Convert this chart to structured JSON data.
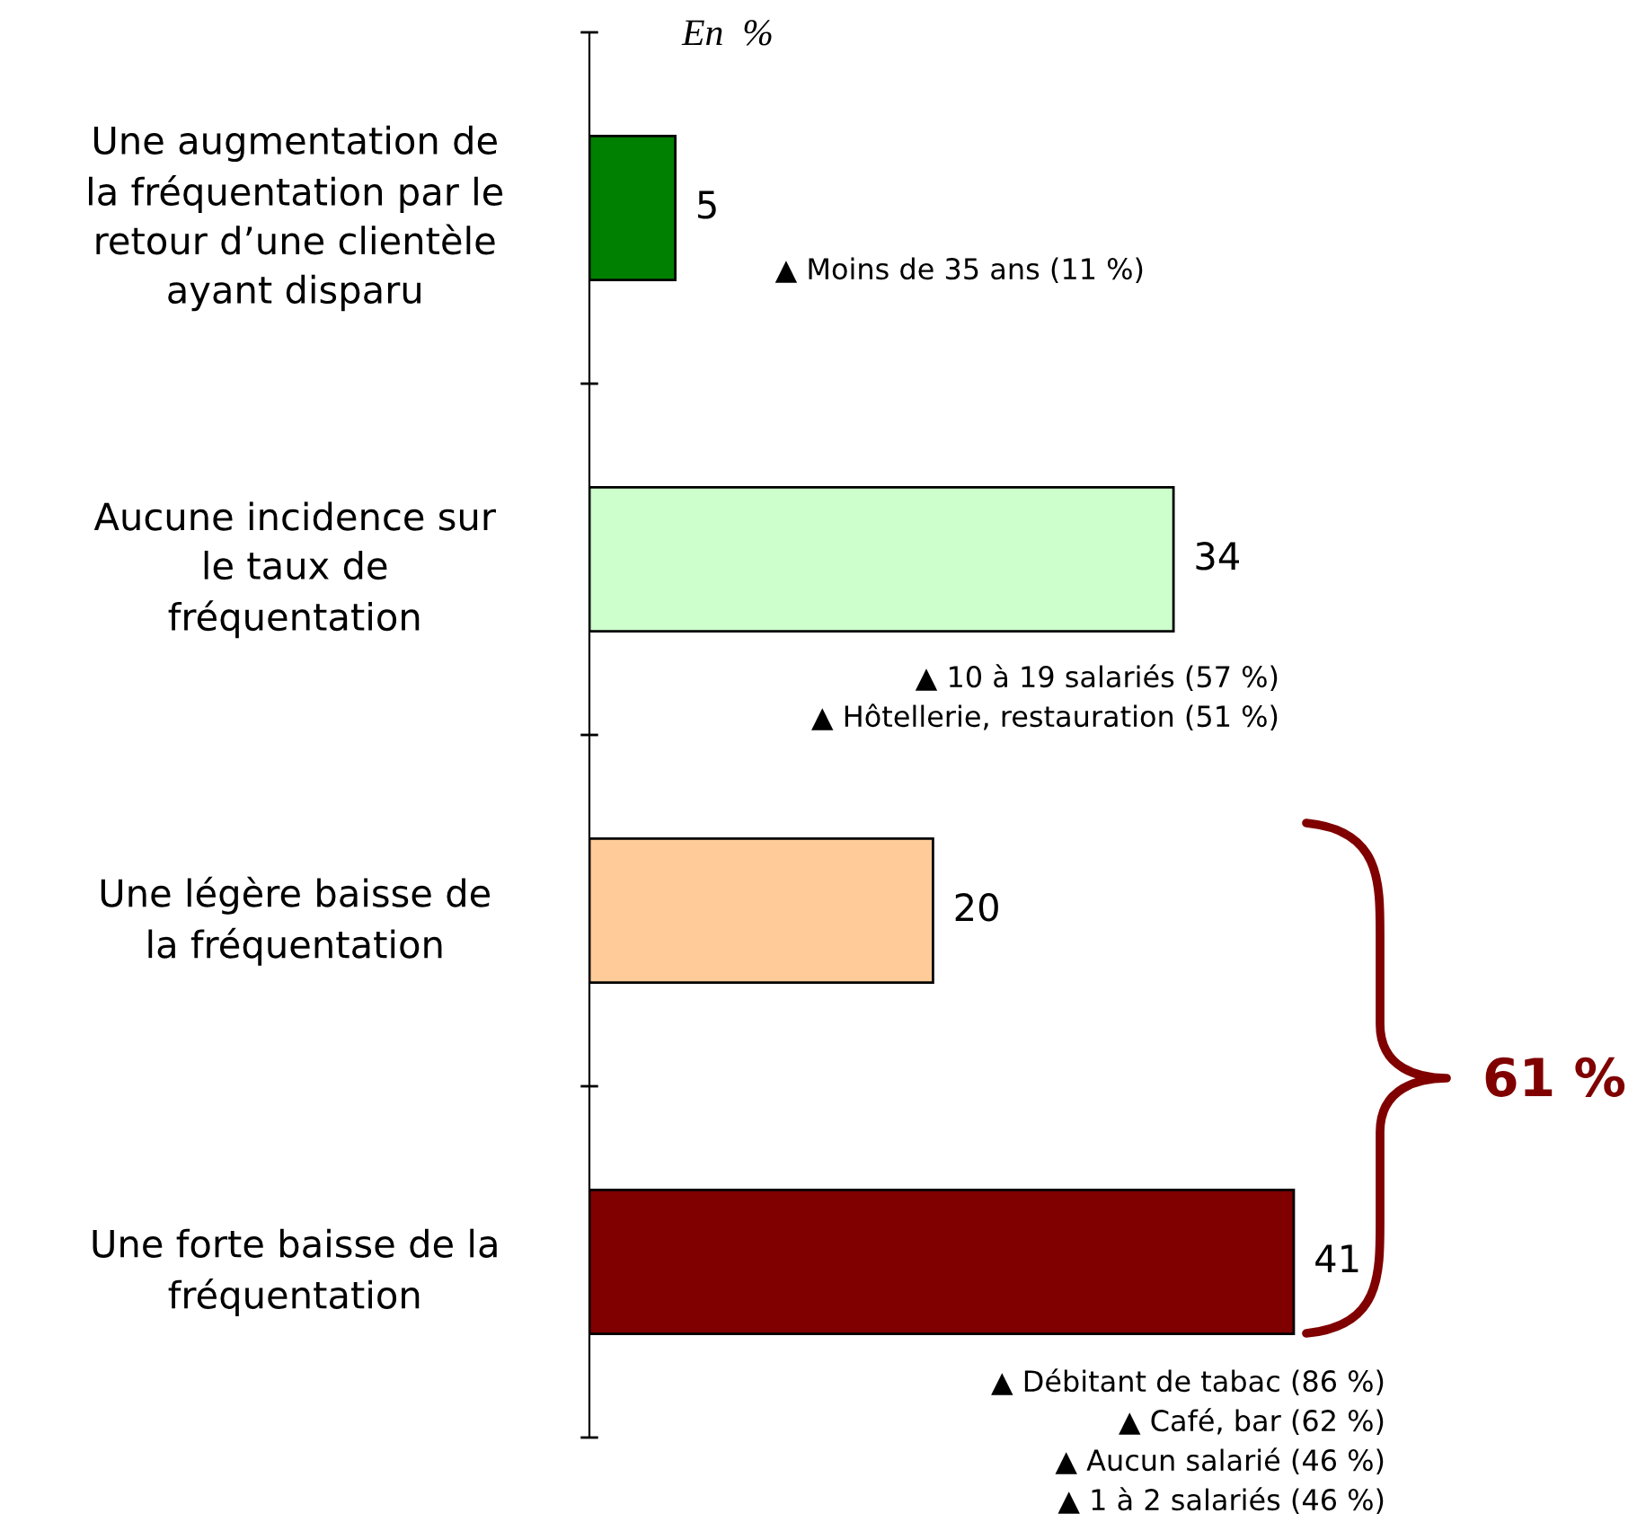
{
  "chart_data": {
    "type": "bar",
    "orientation": "horizontal",
    "data_labels": true,
    "grid": false,
    "legend": false,
    "categories": [
      "Une augmentation de\nla fréquentation par le\nretour d’une clientèle\nayant disparu",
      "Aucune incidence sur\nle taux de\nfréquentation",
      "Une légère baisse de\nla fréquentation",
      "Une forte baisse de la\nfréquentation"
    ],
    "values": [
      5,
      34,
      20,
      41
    ],
    "colors": [
      "#008000",
      "#ccffcc",
      "#ffcc99",
      "#800000"
    ],
    "annotations": [
      "En  %",
      "▲ Moins de 35 ans (11 %)",
      "▲ 10 à 19 salariés (57 %)",
      "▲ Hôtellerie, restauration (51 %)",
      "▲ Débitant de tabac (86 %)",
      "▲ Café, bar (62 %)",
      "▲ Aucun salarié (46 %)",
      "▲ 1 à 2 salariés (46 %)",
      "61 %"
    ]
  }
}
